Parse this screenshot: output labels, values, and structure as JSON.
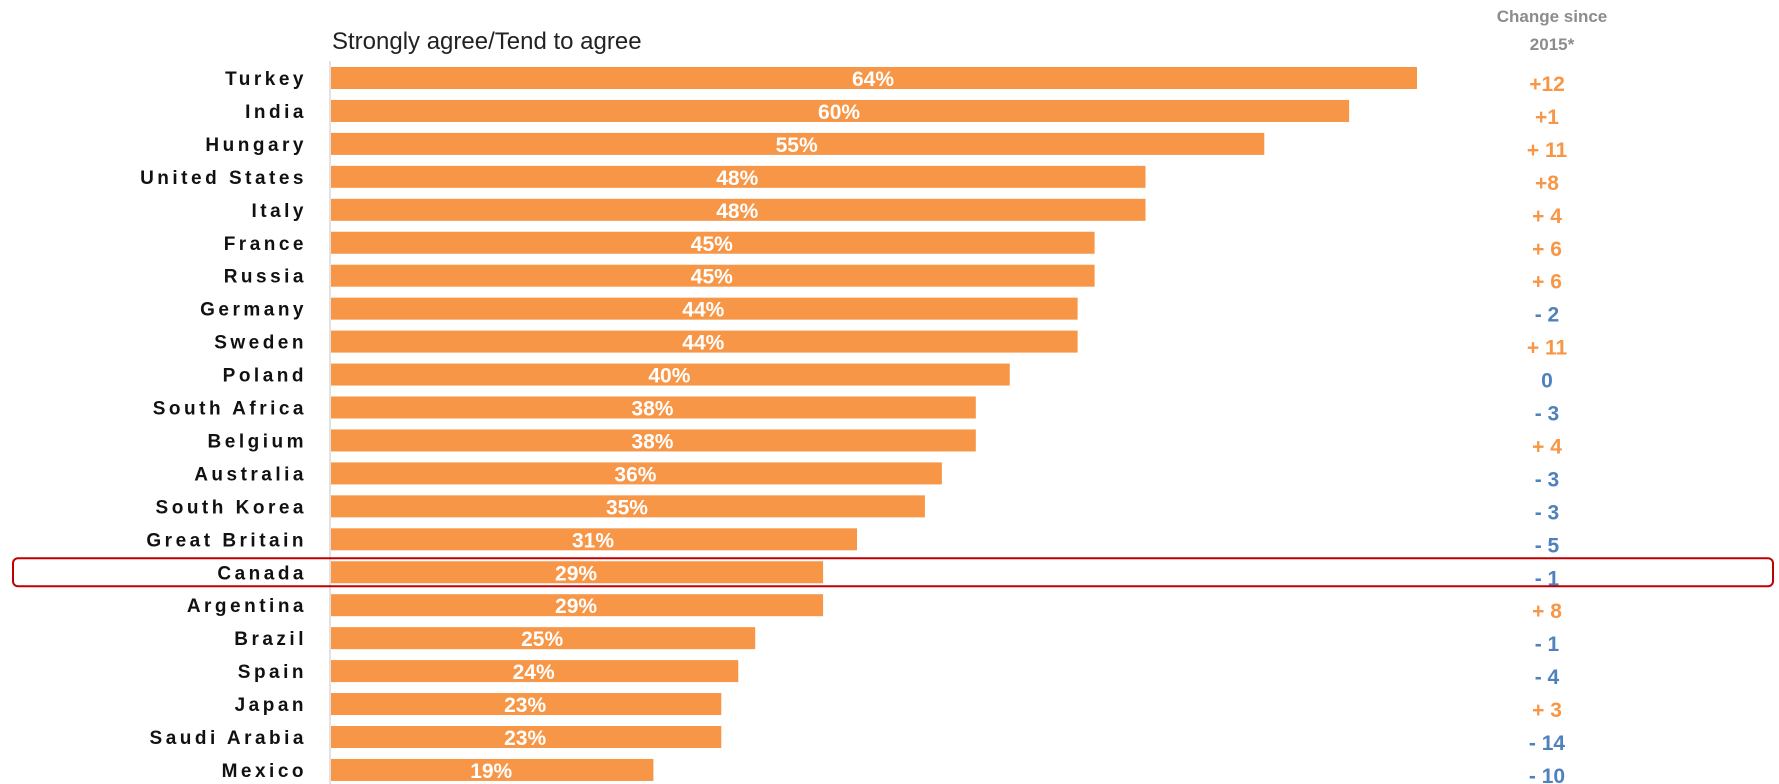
{
  "chart_data": {
    "type": "bar",
    "orientation": "horizontal",
    "subtitle": "Strongly agree/Tend to agree",
    "change_header": [
      "Change since",
      "2015*"
    ],
    "categories": [
      "Turkey",
      "India",
      "Hungary",
      "United States",
      "Italy",
      "France",
      "Russia",
      "Germany",
      "Sweden",
      "Poland",
      "South Africa",
      "Belgium",
      "Australia",
      "South Korea",
      "Great Britain",
      "Canada",
      "Argentina",
      "Brazil",
      "Spain",
      "Japan",
      "Saudi Arabia",
      "Mexico"
    ],
    "values": [
      64,
      60,
      55,
      48,
      48,
      45,
      45,
      44,
      44,
      40,
      38,
      38,
      36,
      35,
      31,
      29,
      29,
      25,
      24,
      23,
      23,
      19
    ],
    "value_labels": [
      "64%",
      "60%",
      "55%",
      "48%",
      "48%",
      "45%",
      "45%",
      "44%",
      "44%",
      "40%",
      "38%",
      "38%",
      "36%",
      "35%",
      "31%",
      "29%",
      "29%",
      "25%",
      "24%",
      "23%",
      "23%",
      "19%"
    ],
    "change_labels": [
      "+12",
      "+1",
      "+ 11",
      "+8",
      "+ 4",
      "+ 6",
      "+ 6",
      "- 2",
      "+ 11",
      "0",
      "- 3",
      "+ 4",
      "- 3",
      "- 3",
      "- 5",
      "- 1",
      "+ 8",
      "- 1",
      "- 4",
      "+ 3",
      "- 14",
      "- 10"
    ],
    "change_values": [
      12,
      1,
      11,
      8,
      4,
      6,
      6,
      -2,
      11,
      0,
      -3,
      4,
      -3,
      -3,
      -5,
      -1,
      8,
      -1,
      -4,
      3,
      -14,
      -10
    ],
    "highlighted_category": "Canada",
    "xlim": [
      0,
      64
    ],
    "legend": "none",
    "grid": false,
    "colors": {
      "bar": "#f79646",
      "increase": "#f79646",
      "decrease": "#4f81bd",
      "highlight_outline": "#c00000",
      "axis": "#d9d9d9"
    }
  }
}
